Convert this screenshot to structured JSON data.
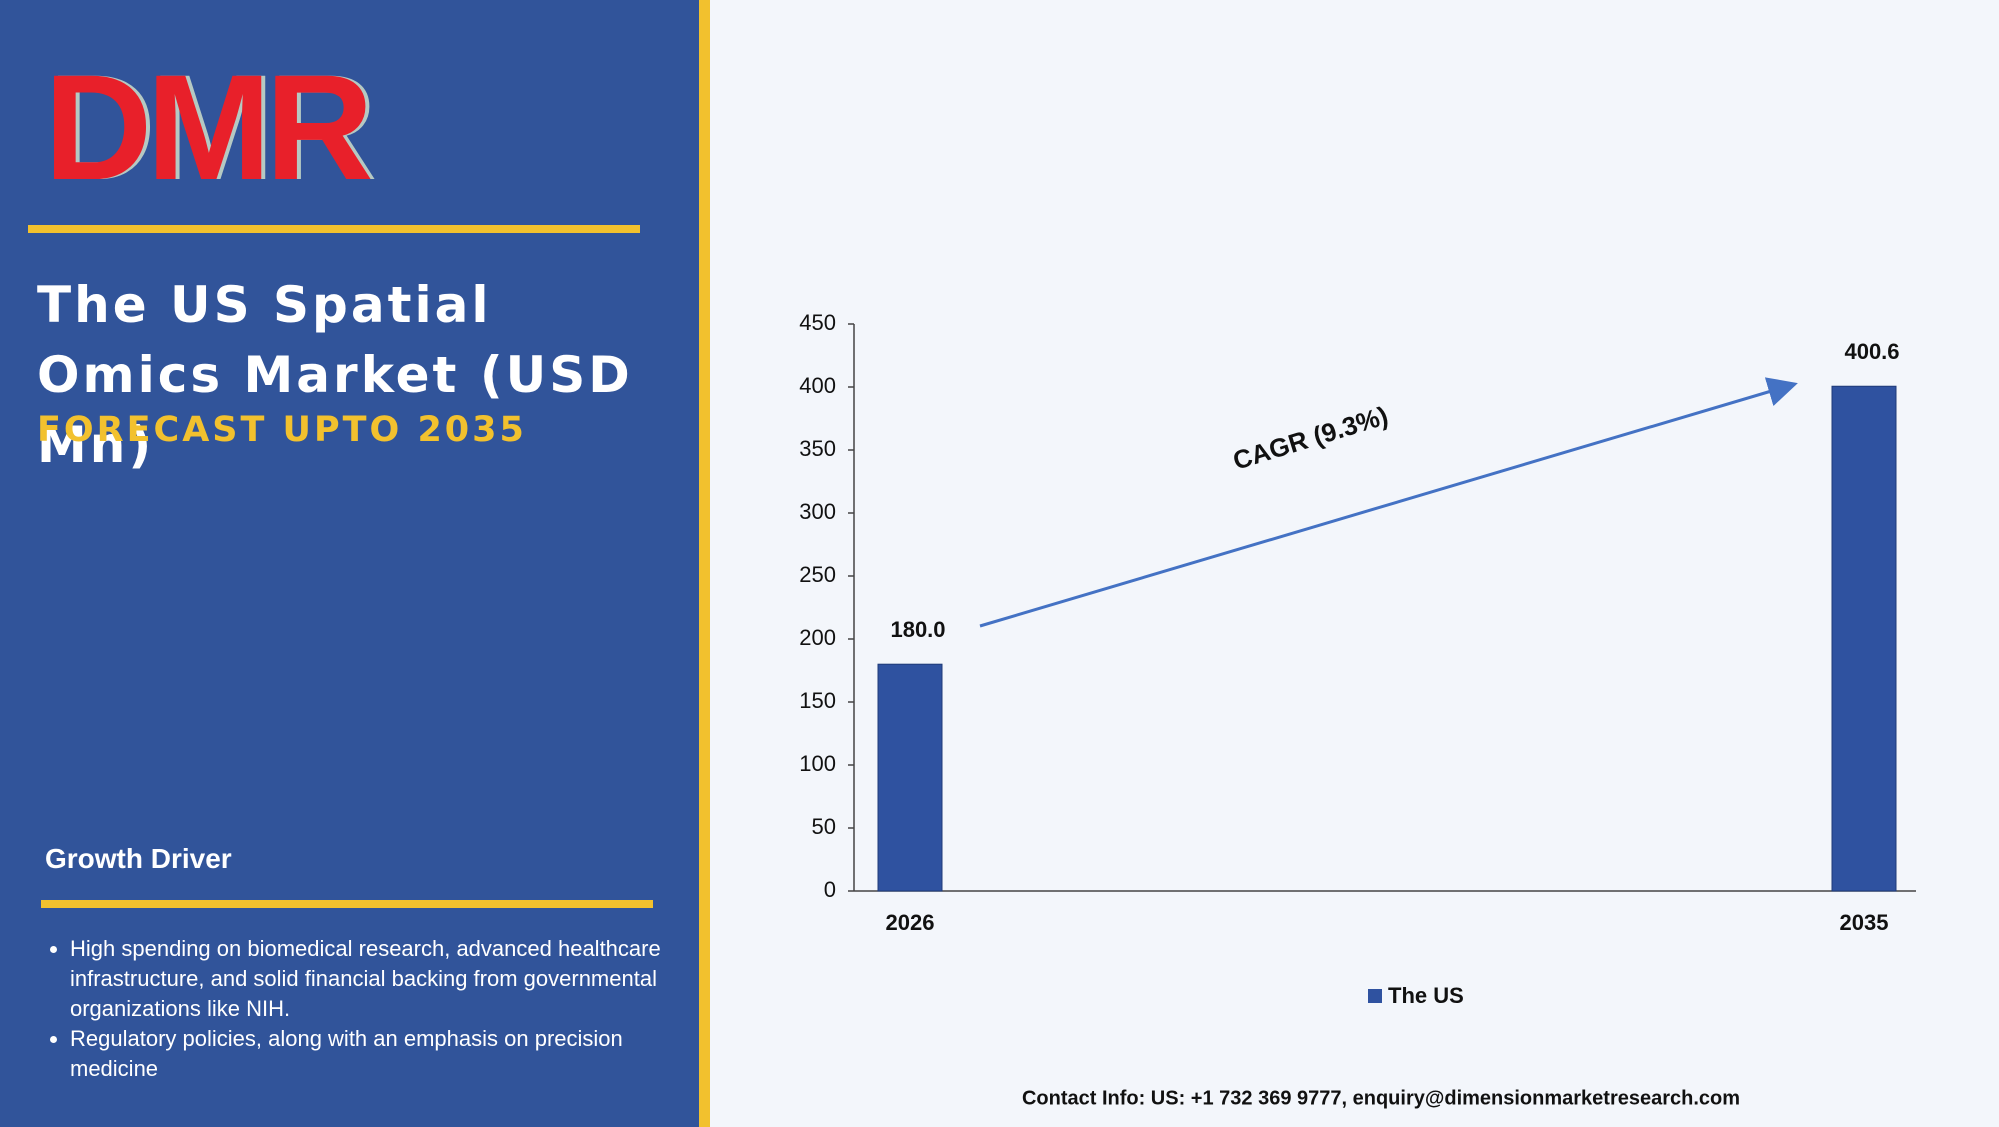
{
  "logo": "DMR",
  "header": {
    "title": "The US Spatial Omics Market (USD Mn)",
    "subtitle": "FORECAST UPTO 2035"
  },
  "growth_driver": {
    "heading": "Growth Driver",
    "bullets": [
      "High spending on biomedical research, advanced healthcare infrastructure, and solid financial backing from governmental organizations like NIH.",
      "Regulatory policies, along with an emphasis on precision medicine"
    ]
  },
  "contact": "Contact Info: US: +1 732 369 9777, enquiry@dimensionmarketresearch.com",
  "chart_data": {
    "type": "bar",
    "categories": [
      "2026",
      "2035"
    ],
    "series": [
      {
        "name": "The US",
        "color": "#2f52a0",
        "values": [
          180.0,
          400.6
        ],
        "value_labels": [
          "180.0",
          "400.6"
        ]
      }
    ],
    "ylim": [
      0,
      450
    ],
    "yticks": [
      0,
      50,
      100,
      150,
      200,
      250,
      300,
      350,
      400,
      450
    ],
    "annotation": "CAGR (9.3%)",
    "legend": "bottom"
  }
}
